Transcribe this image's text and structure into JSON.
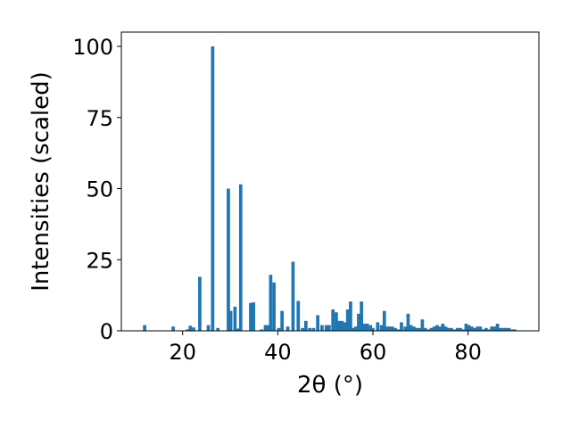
{
  "chart_data": {
    "type": "bar",
    "title": "",
    "xlabel": "2θ (°)",
    "ylabel": "Intensities (scaled)",
    "xlim": [
      7.1,
      94.9
    ],
    "ylim": [
      0,
      100
    ],
    "xticks": [
      20,
      40,
      60,
      80
    ],
    "yticks": [
      0,
      25,
      50,
      75,
      100
    ],
    "grid": false,
    "bar_color": "#1f77b4",
    "x": [
      12.0,
      18.0,
      21.0,
      21.6,
      22.3,
      23.6,
      25.4,
      26.3,
      27.4,
      29.6,
      30.1,
      31.0,
      31.7,
      32.2,
      34.3,
      34.9,
      36.6,
      37.4,
      37.9,
      38.5,
      39.2,
      40.2,
      40.9,
      42.1,
      43.2,
      44.3,
      45.2,
      45.9,
      46.7,
      47.5,
      48.4,
      49.3,
      50.2,
      50.8,
      51.6,
      52.3,
      52.9,
      53.5,
      54.1,
      54.7,
      55.3,
      55.9,
      56.4,
      57.0,
      57.6,
      58.2,
      58.8,
      59.5,
      60.0,
      61.0,
      61.8,
      62.4,
      62.9,
      63.5,
      64.1,
      64.7,
      65.3,
      66.0,
      66.8,
      67.4,
      68.0,
      68.6,
      69.2,
      69.8,
      70.4,
      71.0,
      71.7,
      72.3,
      72.9,
      73.5,
      74.1,
      74.7,
      75.3,
      75.9,
      76.5,
      77.2,
      77.8,
      78.4,
      79.0,
      79.6,
      80.2,
      80.8,
      81.4,
      82.0,
      82.6,
      83.2,
      83.8,
      84.4,
      85.0,
      85.6,
      86.2,
      86.8,
      87.4,
      88.0,
      88.6,
      89.2,
      89.8
    ],
    "values": [
      2.0,
      1.5,
      0.5,
      1.8,
      1.2,
      19.0,
      2.0,
      100.0,
      1.0,
      50.0,
      7.0,
      8.5,
      0.8,
      51.5,
      9.8,
      10.0,
      0.5,
      2.0,
      2.0,
      19.7,
      17.0,
      1.0,
      7.0,
      1.5,
      24.3,
      10.5,
      1.0,
      3.5,
      1.0,
      1.0,
      5.5,
      2.0,
      2.0,
      2.0,
      7.5,
      6.5,
      3.5,
      3.5,
      3.0,
      7.5,
      10.3,
      1.0,
      1.5,
      6.0,
      10.3,
      2.5,
      2.5,
      2.0,
      1.0,
      3.0,
      2.0,
      7.0,
      1.5,
      1.5,
      1.5,
      1.0,
      0.5,
      3.0,
      1.5,
      6.0,
      2.0,
      1.5,
      1.0,
      1.0,
      4.0,
      1.0,
      0.5,
      1.0,
      1.5,
      2.0,
      1.5,
      2.5,
      1.5,
      1.0,
      1.0,
      0.5,
      1.0,
      1.0,
      0.5,
      2.5,
      2.0,
      1.5,
      1.0,
      1.5,
      1.5,
      0.5,
      1.0,
      0.5,
      1.5,
      1.5,
      2.5,
      1.0,
      1.0,
      1.0,
      1.0,
      0.5,
      0.5
    ]
  }
}
